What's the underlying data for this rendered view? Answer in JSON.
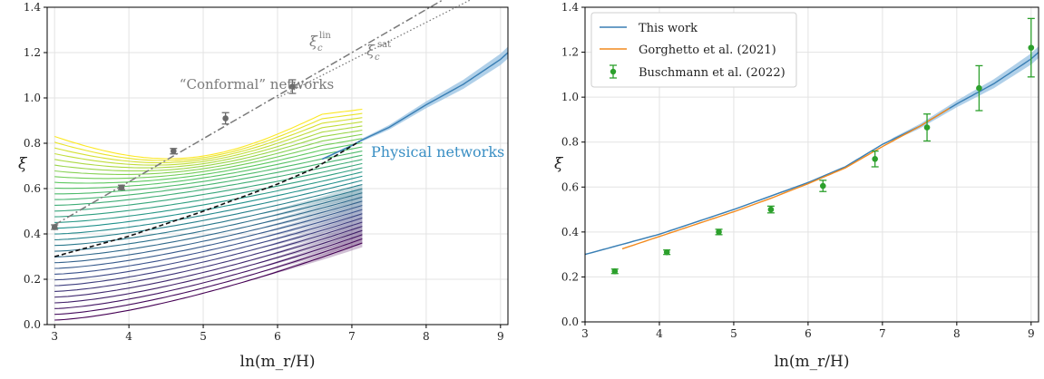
{
  "figure": {
    "colors": {
      "blue": "#3a7fb4",
      "blue_band": "#9cc4e4",
      "orange": "#f28a1e",
      "green": "#2ca02c",
      "gray": "#7a7a7a",
      "grid": "#e3e3e3",
      "yellow": "#e8e51a",
      "teal": "#22a685",
      "purple": "#45125a"
    }
  },
  "chart_data": [
    {
      "type": "line",
      "xlabel": "ln(m_r/H)",
      "ylabel": "ξ",
      "xlim": [
        2.9,
        9.1
      ],
      "ylim": [
        0.0,
        1.4
      ],
      "xticks": [
        "3",
        "4",
        "5",
        "6",
        "7",
        "8",
        "9"
      ],
      "yticks": [
        "0.0",
        "0.2",
        "0.4",
        "0.6",
        "0.8",
        "1.0",
        "1.2",
        "1.4"
      ],
      "grid": true,
      "annotations": {
        "conformal": "“Conformal” networks",
        "physical": "Physical networks",
        "xi_lin_base": "ξ",
        "xi_lin_sub": "c",
        "xi_lin_sup": "lin",
        "xi_sat_base": "ξ",
        "xi_sat_sub": "c",
        "xi_sat_sup": "sat"
      },
      "physical_curve": {
        "x": [
          6.6,
          7.0,
          7.14,
          7.5,
          8.0,
          8.5,
          9.0,
          9.1
        ],
        "y": [
          0.73,
          0.79,
          0.815,
          0.87,
          0.97,
          1.06,
          1.17,
          1.2
        ]
      },
      "black_dashed": {
        "x": [
          3.0,
          3.5,
          4.0,
          4.5,
          5.0,
          5.5,
          6.0,
          6.5,
          7.14
        ],
        "y": [
          0.3,
          0.345,
          0.39,
          0.445,
          0.5,
          0.56,
          0.62,
          0.69,
          0.815
        ]
      },
      "xi_lin_line": {
        "x": [
          3.0,
          9.0
        ],
        "y": [
          0.44,
          1.58
        ]
      },
      "xi_sat_line": {
        "x": [
          6.0,
          9.0
        ],
        "y": [
          1.0,
          1.5
        ]
      },
      "gray_points": {
        "x": [
          3.0,
          3.9,
          4.6,
          5.3,
          6.2
        ],
        "y": [
          0.43,
          0.605,
          0.765,
          0.91,
          1.05
        ],
        "err": [
          0.01,
          0.01,
          0.012,
          0.025,
          0.03
        ]
      },
      "network_family": {
        "x_range": [
          3.0,
          7.14
        ],
        "count": 33,
        "lower_start": 0.02,
        "upper_start": 0.83,
        "lower_end": 0.36,
        "upper_end": 0.95
      }
    },
    {
      "type": "line",
      "xlabel": "ln(m_r/H)",
      "ylabel": "ξ",
      "xlim": [
        3.0,
        9.1
      ],
      "ylim": [
        0.0,
        1.4
      ],
      "xticks": [
        "3",
        "4",
        "5",
        "6",
        "7",
        "8",
        "9"
      ],
      "yticks": [
        "0.0",
        "0.2",
        "0.4",
        "0.6",
        "0.8",
        "1.0",
        "1.2",
        "1.4"
      ],
      "grid": true,
      "legend_position": "top-left",
      "series": [
        {
          "name": "This work",
          "x": [
            3.0,
            3.5,
            4.0,
            4.5,
            5.0,
            5.5,
            6.0,
            6.5,
            7.0,
            7.5,
            8.0,
            8.5,
            9.0,
            9.1
          ],
          "y": [
            0.3,
            0.345,
            0.39,
            0.445,
            0.5,
            0.56,
            0.62,
            0.69,
            0.79,
            0.87,
            0.97,
            1.06,
            1.17,
            1.2
          ]
        },
        {
          "name": "Gorghetto et al. (2021)",
          "x": [
            3.5,
            4.0,
            4.5,
            5.0,
            5.5,
            6.0,
            6.5,
            7.0,
            7.5,
            7.9
          ],
          "y": [
            0.325,
            0.38,
            0.435,
            0.49,
            0.55,
            0.615,
            0.685,
            0.78,
            0.87,
            0.95
          ]
        },
        {
          "name": "Buschmann et al. (2022)",
          "x": [
            3.4,
            4.1,
            4.8,
            5.5,
            6.2,
            6.9,
            7.6,
            8.3,
            9.0
          ],
          "y": [
            0.225,
            0.31,
            0.4,
            0.5,
            0.605,
            0.725,
            0.865,
            1.04,
            1.22
          ],
          "err": [
            0.01,
            0.01,
            0.012,
            0.015,
            0.025,
            0.035,
            0.06,
            0.1,
            0.13
          ]
        }
      ]
    }
  ]
}
